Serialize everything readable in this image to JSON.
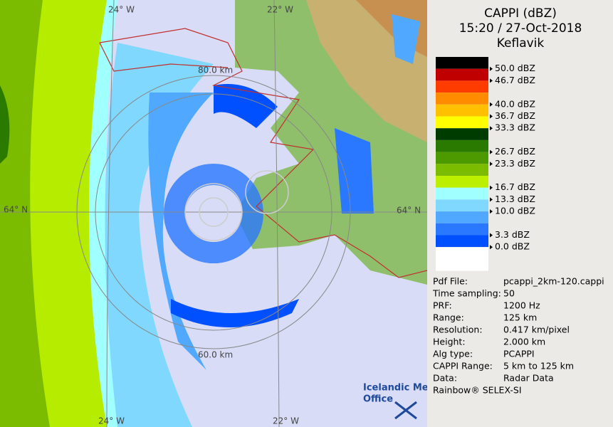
{
  "map": {
    "labels": {
      "lon_left_top": "24° W",
      "lon_right_top": "22° W",
      "lat_left": "64° N",
      "lat_right": "64° N",
      "ring_inner": "80.0 km",
      "ring_outer": "60.0 km",
      "lon_left_bottom": "24° W",
      "lon_right_bottom": "22° W"
    }
  },
  "legend": {
    "title": [
      "CAPPI (dBZ)",
      "15:20 / 27-Oct-2018",
      "Keflavik"
    ],
    "swatches": [
      "#000000",
      "#c00000",
      "#ff3c00",
      "#ff8c00",
      "#ffc000",
      "#ffff00",
      "#003c00",
      "#2a7a00",
      "#4c9a00",
      "#7cbc00",
      "#bcf000",
      "#a0ffff",
      "#80d8ff",
      "#50a8ff",
      "#2a78ff",
      "#0050ff",
      "#ffffff"
    ],
    "labels": [
      "50.0 dBZ",
      "46.7 dBZ",
      "40.0 dBZ",
      "36.7 dBZ",
      "33.3 dBZ",
      "26.7 dBZ",
      "23.3 dBZ",
      "16.7 dBZ",
      "13.3 dBZ",
      "10.0 dBZ",
      "3.3 dBZ",
      "0.0 dBZ"
    ]
  },
  "info": [
    [
      "Pdf File:",
      "pcappi_2km-120.cappi"
    ],
    [
      "Time sampling:",
      "50"
    ],
    [
      "PRF:",
      "1200 Hz"
    ],
    [
      "Range:",
      "125 km"
    ],
    [
      "Resolution:",
      "0.417 km/pixel"
    ],
    [
      "Height:",
      "2.000 km"
    ],
    [
      "Alg type:",
      "PCAPPI"
    ],
    [
      "CAPPI Range:",
      "5 km to 125 km"
    ],
    [
      "Data:",
      "Radar Data"
    ]
  ],
  "footer": "Rainbow® SELEX-SI",
  "logo": [
    "Icelandic Met",
    "Office"
  ]
}
